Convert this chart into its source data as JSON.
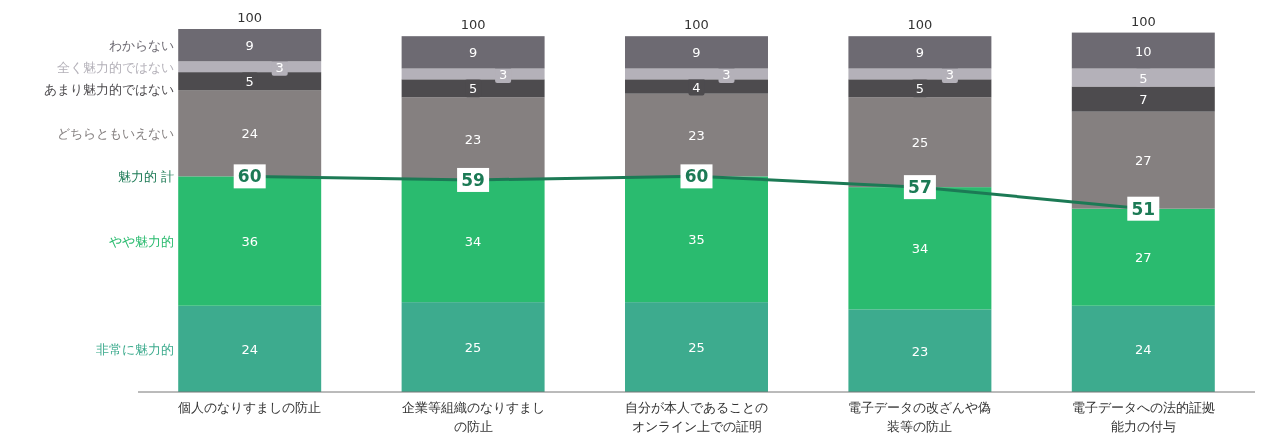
{
  "chart_data": {
    "type": "bar",
    "stacked": true,
    "data_labels": true,
    "categories": [
      "個人のなりすましの防止",
      "企業等組織のなりすましの防止",
      "自分が本人であることのオンライン上での証明",
      "電子データの改ざんや偽装等の防止",
      "電子データへの法的証拠能力の付与"
    ],
    "series": [
      {
        "name": "非常に魅力的",
        "color": "#3dab8e",
        "values": [
          24,
          25,
          25,
          23,
          24
        ]
      },
      {
        "name": "やや魅力的",
        "color": "#2abb6f",
        "values": [
          36,
          34,
          35,
          34,
          27
        ]
      },
      {
        "name": "どちらともいえない",
        "color": "#858080",
        "values": [
          24,
          23,
          23,
          25,
          27
        ]
      },
      {
        "name": "あまり魅力的ではない",
        "color": "#4d4b4e",
        "values": [
          5,
          5,
          4,
          5,
          7
        ]
      },
      {
        "name": "全く魅力的ではない",
        "color": "#b4b1b9",
        "values": [
          3,
          3,
          3,
          3,
          5
        ]
      },
      {
        "name": "わからない",
        "color": "#6d6a72",
        "values": [
          9,
          9,
          9,
          9,
          10
        ]
      },
      {
        "name": "魅力的 計",
        "type": "line",
        "marker": "square",
        "color": "#1c7a55",
        "values": [
          60,
          59,
          60,
          57,
          51
        ]
      }
    ],
    "totals": [
      "100",
      "100",
      "100",
      "100",
      "100"
    ]
  }
}
